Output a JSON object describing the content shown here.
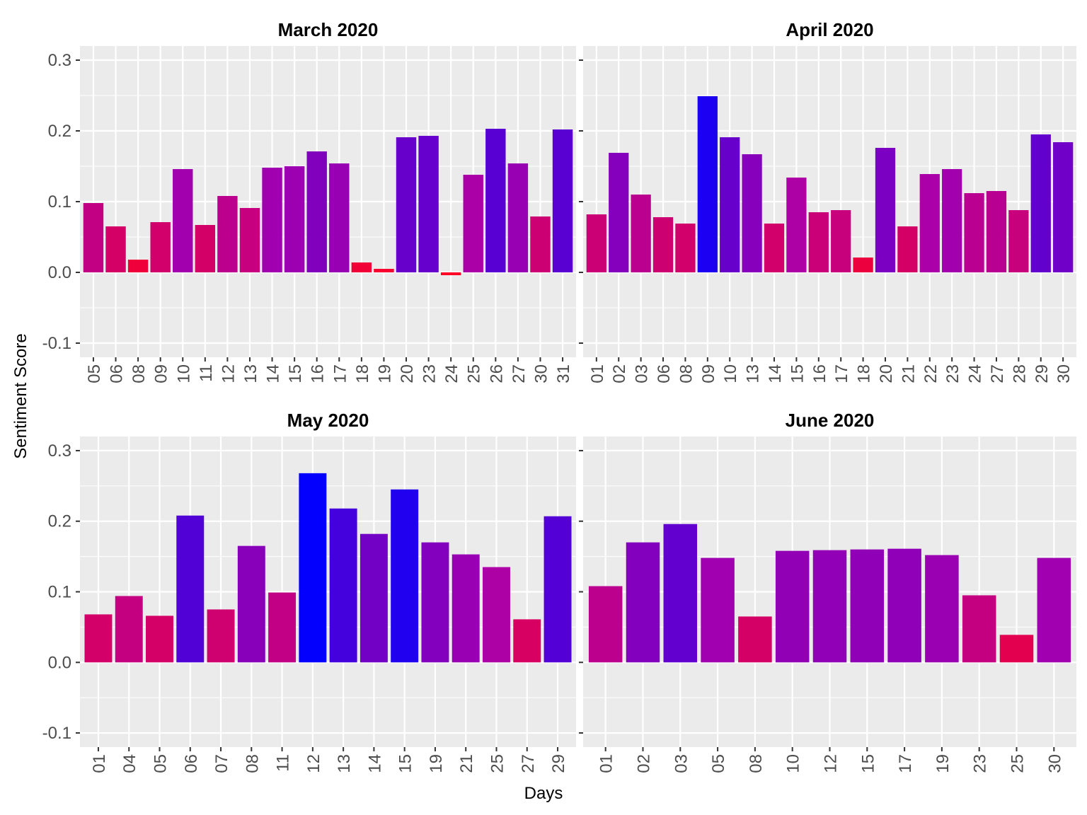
{
  "chart_data": {
    "type": "bar",
    "xlabel": "Days",
    "ylabel": "Sentiment Score",
    "ylim": [
      -0.12,
      0.32
    ],
    "yticks": [
      "-0.1",
      "0.0",
      "0.1",
      "0.2",
      "0.3"
    ],
    "grid": true,
    "color_scale": {
      "low": "#ff0022",
      "mid": "#aa00aa",
      "high": "#0000ff"
    },
    "panels": [
      {
        "title": "March 2020",
        "categories": [
          "05",
          "06",
          "08",
          "09",
          "10",
          "11",
          "12",
          "13",
          "14",
          "15",
          "16",
          "17",
          "18",
          "19",
          "20",
          "23",
          "24",
          "25",
          "26",
          "27",
          "30",
          "31"
        ],
        "values": [
          0.098,
          0.065,
          0.018,
          0.071,
          0.146,
          0.067,
          0.108,
          0.091,
          0.148,
          0.15,
          0.171,
          0.154,
          0.014,
          0.005,
          0.191,
          0.193,
          -0.004,
          0.138,
          0.203,
          0.154,
          0.079,
          0.202
        ]
      },
      {
        "title": "April 2020",
        "categories": [
          "01",
          "02",
          "03",
          "06",
          "08",
          "09",
          "10",
          "13",
          "14",
          "15",
          "16",
          "17",
          "18",
          "20",
          "21",
          "22",
          "23",
          "24",
          "27",
          "28",
          "29",
          "30"
        ],
        "values": [
          0.082,
          0.169,
          0.11,
          0.078,
          0.069,
          0.249,
          0.191,
          0.167,
          0.069,
          0.134,
          0.085,
          0.088,
          0.021,
          0.176,
          0.065,
          0.139,
          0.146,
          0.112,
          0.115,
          0.088,
          0.195,
          0.184
        ]
      },
      {
        "title": "May 2020",
        "categories": [
          "01",
          "04",
          "05",
          "06",
          "07",
          "08",
          "11",
          "12",
          "13",
          "14",
          "15",
          "19",
          "21",
          "25",
          "27",
          "29"
        ],
        "values": [
          0.068,
          0.094,
          0.066,
          0.208,
          0.075,
          0.165,
          0.099,
          0.268,
          0.218,
          0.182,
          0.245,
          0.17,
          0.153,
          0.135,
          0.061,
          0.207
        ]
      },
      {
        "title": "June 2020",
        "categories": [
          "01",
          "02",
          "03",
          "05",
          "08",
          "10",
          "12",
          "15",
          "17",
          "19",
          "23",
          "25",
          "30"
        ],
        "values": [
          0.108,
          0.17,
          0.196,
          0.148,
          0.065,
          0.158,
          0.159,
          0.16,
          0.161,
          0.152,
          0.095,
          0.039,
          0.148
        ]
      }
    ]
  }
}
